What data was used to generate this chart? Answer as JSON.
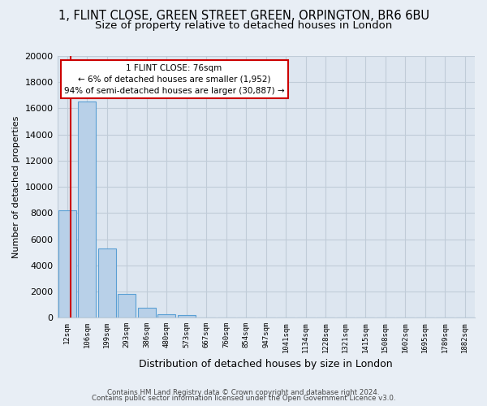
{
  "title": "1, FLINT CLOSE, GREEN STREET GREEN, ORPINGTON, BR6 6BU",
  "subtitle": "Size of property relative to detached houses in London",
  "xlabel": "Distribution of detached houses by size in London",
  "ylabel": "Number of detached properties",
  "categories": [
    "12sqm",
    "106sqm",
    "199sqm",
    "293sqm",
    "386sqm",
    "480sqm",
    "573sqm",
    "667sqm",
    "760sqm",
    "854sqm",
    "947sqm",
    "1041sqm",
    "1134sqm",
    "1228sqm",
    "1321sqm",
    "1415sqm",
    "1508sqm",
    "1602sqm",
    "1695sqm",
    "1789sqm",
    "1882sqm"
  ],
  "values": [
    8200,
    16500,
    5300,
    1800,
    750,
    250,
    200,
    0,
    0,
    0,
    0,
    0,
    0,
    0,
    0,
    0,
    0,
    0,
    0,
    0,
    0
  ],
  "bar_color": "#b8d0e8",
  "bar_edge_color": "#5a9fd4",
  "marker_line_color": "#cc0000",
  "annotation_line1": "1 FLINT CLOSE: 76sqm",
  "annotation_line2": "← 6% of detached houses are smaller (1,952)",
  "annotation_line3": "94% of semi-detached houses are larger (30,887) →",
  "annotation_box_color": "#ffffff",
  "annotation_box_edge": "#cc0000",
  "ylim": [
    0,
    20000
  ],
  "yticks": [
    0,
    2000,
    4000,
    6000,
    8000,
    10000,
    12000,
    14000,
    16000,
    18000,
    20000
  ],
  "footer_line1": "Contains HM Land Registry data © Crown copyright and database right 2024.",
  "footer_line2": "Contains public sector information licensed under the Open Government Licence v3.0.",
  "background_color": "#e8eef5",
  "plot_background": "#dde6f0",
  "grid_color": "#c0ccd8",
  "title_fontsize": 10.5,
  "subtitle_fontsize": 9.5
}
